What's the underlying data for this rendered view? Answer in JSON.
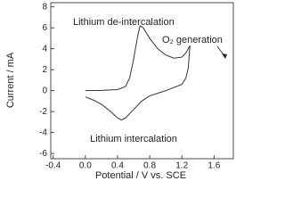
{
  "chart_data": {
    "type": "line",
    "x_label": "Potential / V vs. SCE",
    "y_label": "Current / mA",
    "annotations": [
      "Lithium de-intercalation",
      "O₂ generation",
      "Lithium intercalation"
    ],
    "x": [
      0.0,
      0.2,
      0.4,
      0.5,
      0.55,
      0.6,
      0.65,
      0.68,
      0.72,
      0.8,
      0.9,
      1.0,
      1.1,
      1.2,
      1.25,
      1.3,
      1.28,
      1.25,
      1.2,
      1.0,
      0.8,
      0.7,
      0.6,
      0.5,
      0.45,
      0.4,
      0.3,
      0.2,
      0.1,
      0.0
    ],
    "values": [
      0,
      0.02,
      0.1,
      0.4,
      1.2,
      3.0,
      5.2,
      6.2,
      6.0,
      5.0,
      4.0,
      3.4,
      3.1,
      3.2,
      3.6,
      4.3,
      2.2,
      1.2,
      0.6,
      0.0,
      -0.5,
      -1.0,
      -1.8,
      -2.6,
      -2.8,
      -2.6,
      -1.9,
      -1.3,
      -0.9,
      -0.6
    ],
    "color": "#333333",
    "xlim": [
      -0.43,
      1.84
    ],
    "ylim": [
      -6.5,
      8.4
    ],
    "xticks": [
      -0.4,
      {
        "value": 0,
        "label": "0.0"
      },
      0.4,
      0.8,
      1.2,
      1.6
    ],
    "yticks": [
      -6,
      -4,
      -2,
      0,
      2,
      4,
      6,
      8
    ]
  }
}
